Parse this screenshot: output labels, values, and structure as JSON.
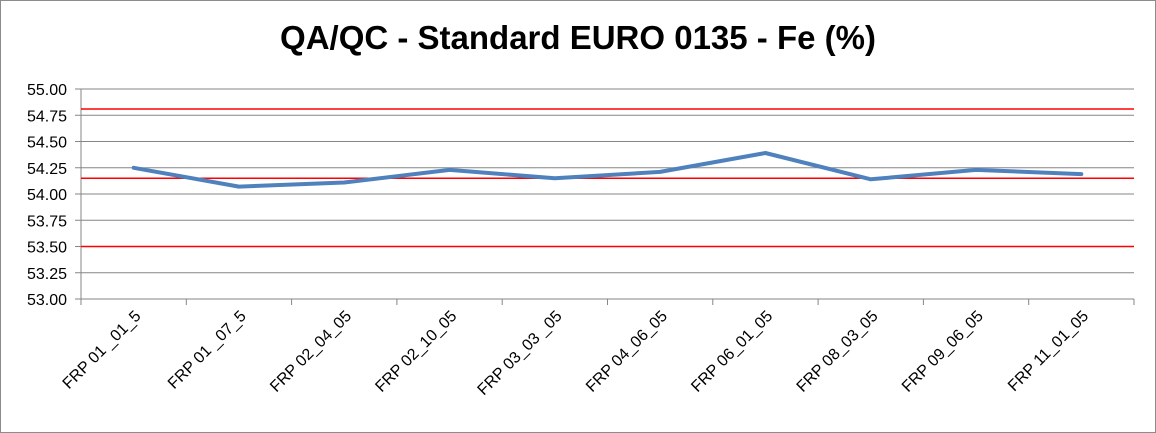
{
  "chart_data": {
    "type": "line",
    "title": "QA/QC - Standard EURO 0135 - Fe (%)",
    "xlabel": "",
    "ylabel": "",
    "categories": [
      "FRP 01 _01_5",
      "FRP 01 _07_5",
      "FRP 02_04_05",
      "FRP 02_10_05",
      "FRP 03_03 _05",
      "FRP 04_06_05",
      "FRP 06_01_05",
      "FRP 08_03_05",
      "FRP 09_06_05",
      "FRP 11_01_05"
    ],
    "series": [
      {
        "values": [
          54.25,
          54.07,
          54.11,
          54.23,
          54.15,
          54.21,
          54.39,
          54.14,
          54.23,
          54.19
        ],
        "color": "#4f81bd"
      }
    ],
    "reference_lines": [
      {
        "value": 54.81,
        "color": "#ff0000"
      },
      {
        "value": 54.15,
        "color": "#ff0000"
      },
      {
        "value": 53.5,
        "color": "#ff0000"
      }
    ],
    "ylim": [
      53.0,
      55.0
    ],
    "yticks": [
      "53.00",
      "53.25",
      "53.50",
      "53.75",
      "54.00",
      "54.25",
      "54.50",
      "54.75",
      "55.00"
    ],
    "grid": true,
    "gridline_color": "#868686",
    "axis_color": "#868686",
    "legend": "none"
  }
}
